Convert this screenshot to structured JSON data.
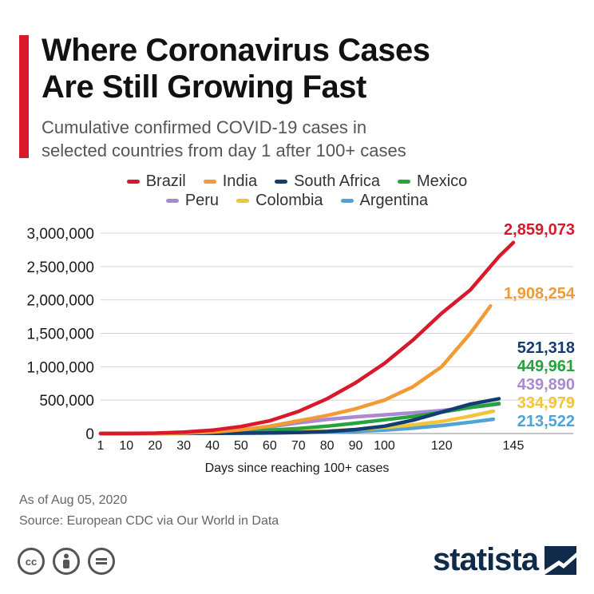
{
  "title": [
    "Where Coronavirus Cases",
    "Are Still Growing Fast"
  ],
  "subtitle": [
    "Cumulative confirmed COVID-19 cases in",
    "selected countries from day 1 after 100+ cases"
  ],
  "colors": {
    "accent": "#d7192b",
    "Brazil": "#d7192b",
    "India": "#f39a34",
    "South Africa": "#143c73",
    "Mexico": "#26a33c",
    "Peru": "#a98ad2",
    "Colombia": "#f2c43a",
    "Argentina": "#4ea4d8"
  },
  "chart_data": {
    "type": "line",
    "xlabel": "Days since reaching 100+ cases",
    "ylabel": "",
    "xlim": [
      1,
      145
    ],
    "ylim": [
      0,
      3000000
    ],
    "xticks": [
      1,
      10,
      20,
      30,
      40,
      50,
      60,
      70,
      80,
      90,
      100,
      120,
      145
    ],
    "yticks": [
      0,
      500000,
      1000000,
      1500000,
      2000000,
      2500000,
      3000000
    ],
    "ytick_labels": [
      "0",
      "500,000",
      "1,000,000",
      "1,500,000",
      "2,000,000",
      "2,500,000",
      "3,000,000"
    ],
    "grid": "horizontal",
    "legend": "top",
    "series": [
      {
        "name": "Brazil",
        "end_label": "2,859,073",
        "x": [
          1,
          10,
          20,
          30,
          40,
          50,
          60,
          70,
          80,
          90,
          100,
          110,
          120,
          130,
          140,
          145
        ],
        "y": [
          100,
          1000,
          6000,
          20000,
          50000,
          105000,
          190000,
          330000,
          520000,
          760000,
          1050000,
          1400000,
          1800000,
          2150000,
          2650000,
          2859073
        ]
      },
      {
        "name": "India",
        "end_label": "1,908,254",
        "x": [
          1,
          10,
          20,
          30,
          40,
          50,
          60,
          70,
          80,
          90,
          100,
          110,
          120,
          130,
          137
        ],
        "y": [
          100,
          200,
          1500,
          6000,
          20000,
          55000,
          110000,
          190000,
          270000,
          370000,
          500000,
          700000,
          1000000,
          1500000,
          1908254
        ]
      },
      {
        "name": "South Africa",
        "end_label": "521,318",
        "x": [
          1,
          20,
          40,
          60,
          70,
          80,
          90,
          100,
          110,
          120,
          130,
          140
        ],
        "y": [
          100,
          1500,
          4000,
          10000,
          17000,
          30000,
          60000,
          110000,
          200000,
          320000,
          440000,
          521318
        ]
      },
      {
        "name": "Mexico",
        "end_label": "449,961",
        "x": [
          1,
          20,
          40,
          50,
          60,
          70,
          80,
          90,
          100,
          110,
          120,
          130,
          140
        ],
        "y": [
          100,
          2000,
          15000,
          30000,
          50000,
          75000,
          110000,
          155000,
          205000,
          255000,
          320000,
          390000,
          449961
        ]
      },
      {
        "name": "Peru",
        "end_label": "439,890",
        "x": [
          1,
          20,
          40,
          50,
          60,
          70,
          80,
          90,
          100,
          110,
          120,
          130,
          140
        ],
        "y": [
          100,
          3000,
          30000,
          60000,
          100000,
          160000,
          210000,
          250000,
          280000,
          310000,
          345000,
          390000,
          439890
        ]
      },
      {
        "name": "Colombia",
        "end_label": "334,979",
        "x": [
          1,
          20,
          40,
          60,
          70,
          80,
          90,
          100,
          110,
          120,
          130,
          138
        ],
        "y": [
          100,
          1500,
          6000,
          16000,
          25000,
          40000,
          60000,
          90000,
          130000,
          180000,
          260000,
          334979
        ]
      },
      {
        "name": "Argentina",
        "end_label": "213,522",
        "x": [
          1,
          20,
          40,
          60,
          70,
          80,
          90,
          100,
          110,
          120,
          130,
          138
        ],
        "y": [
          100,
          900,
          3500,
          9000,
          14000,
          22000,
          32000,
          50000,
          80000,
          120000,
          170000,
          213522
        ]
      }
    ]
  },
  "footer": {
    "date": "As of Aug 05, 2020",
    "source": "Source: European CDC via Our World in Data"
  },
  "logo": {
    "text": "statista"
  },
  "icons": [
    "cc-icon",
    "attribution-icon",
    "no-derivatives-icon"
  ]
}
